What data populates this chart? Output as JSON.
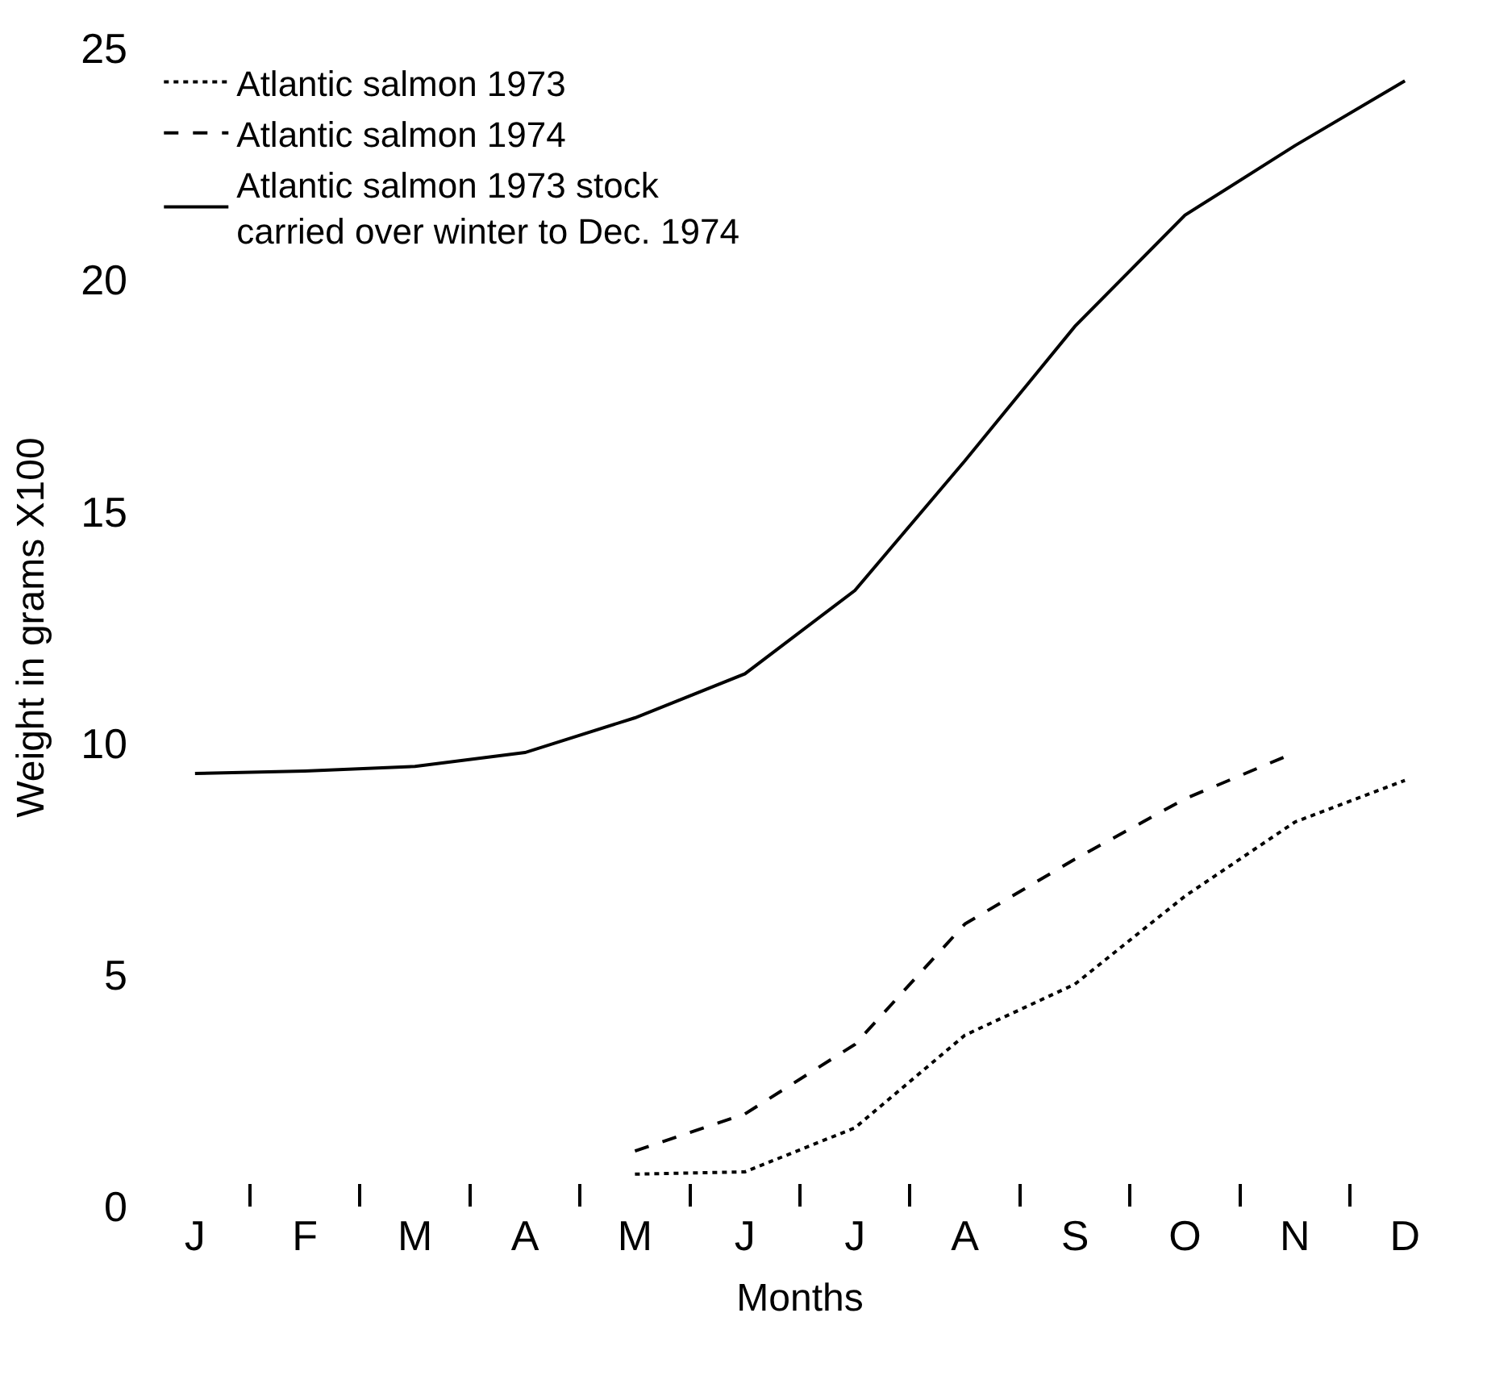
{
  "chart_data": {
    "type": "line",
    "xlabel": "Months",
    "ylabel": "Weight in grams X100",
    "categories": [
      "J",
      "F",
      "M",
      "A",
      "M",
      "J",
      "J",
      "A",
      "S",
      "O",
      "N",
      "D"
    ],
    "ylim": [
      0,
      25
    ],
    "yticks": [
      0,
      5,
      10,
      15,
      20,
      25
    ],
    "legend": "top left",
    "marker": "none",
    "series": [
      {
        "name": "Atlantic salmon 1973",
        "color": "#000000",
        "line_style": "dotted",
        "values": [
          null,
          null,
          null,
          null,
          0.7,
          0.75,
          1.7,
          3.7,
          4.8,
          6.7,
          8.3,
          9.2
        ]
      },
      {
        "name": "Atlantic salmon 1974",
        "color": "#000000",
        "line_style": "dashed",
        "values": [
          null,
          null,
          null,
          null,
          1.2,
          2.0,
          3.5,
          6.1,
          7.5,
          8.8,
          9.8,
          null
        ]
      },
      {
        "name": "Atlantic salmon 1973 stock\ncarried over winter to Dec. 1974",
        "color": "#000000",
        "line_style": "solid",
        "values": [
          9.35,
          9.4,
          9.5,
          9.8,
          10.55,
          11.5,
          13.3,
          16.1,
          19.0,
          21.4,
          22.9,
          24.3
        ]
      }
    ]
  }
}
